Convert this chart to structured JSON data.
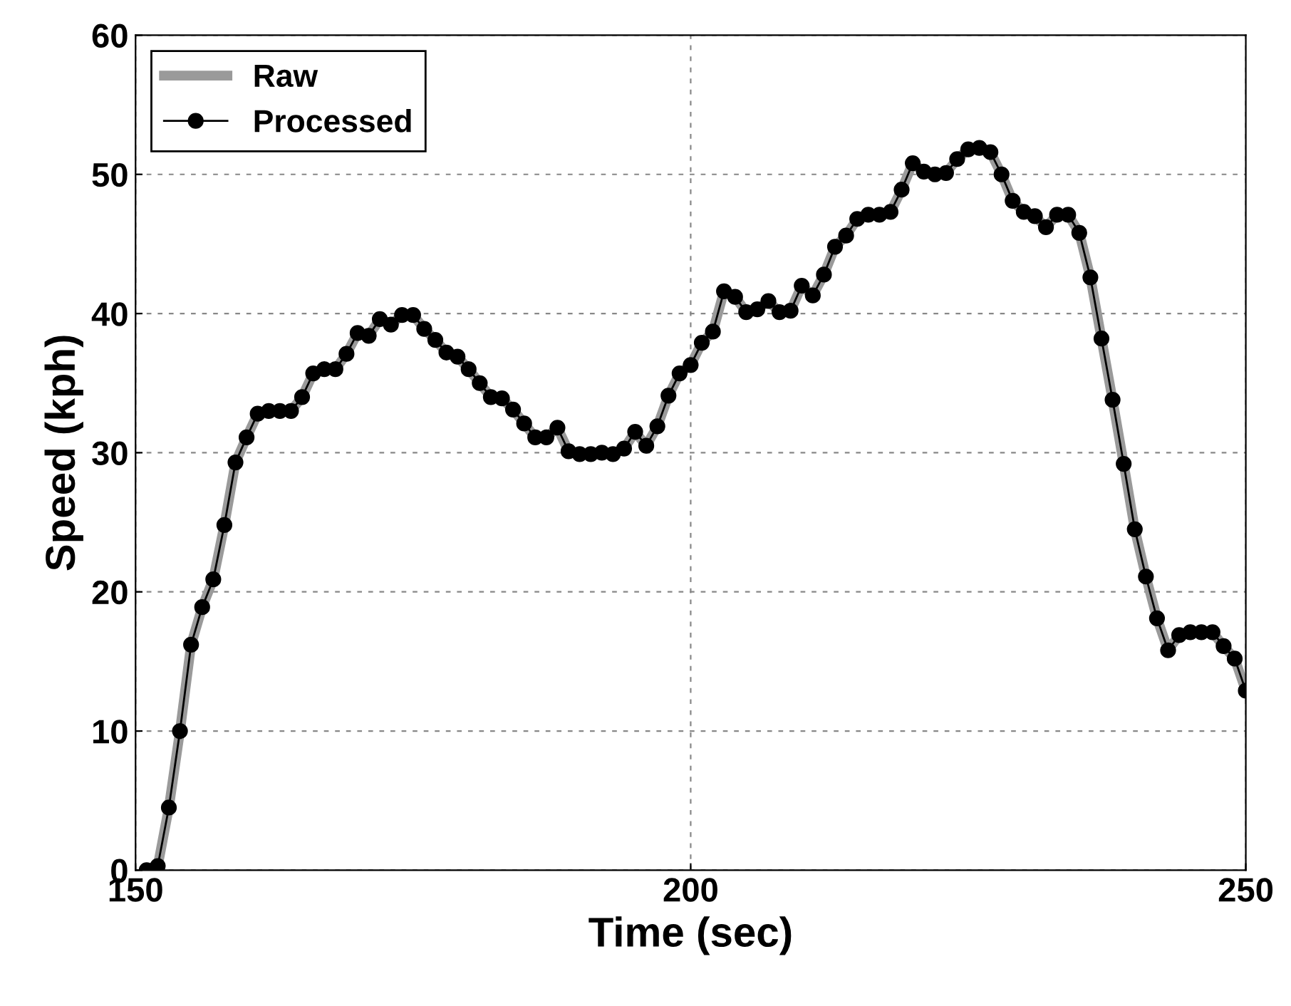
{
  "chart_data": {
    "type": "line",
    "xlabel": "Time (sec)",
    "ylabel": "Speed (kph)",
    "x": [
      151,
      152,
      153,
      154,
      155,
      156,
      157,
      158,
      159,
      160,
      161,
      162,
      163,
      164,
      165,
      166,
      167,
      168,
      169,
      170,
      171,
      172,
      173,
      174,
      175,
      176,
      177,
      178,
      179,
      180,
      181,
      182,
      183,
      184,
      185,
      186,
      187,
      188,
      189,
      190,
      191,
      192,
      193,
      194,
      195,
      196,
      197,
      198,
      199,
      200,
      201,
      202,
      203,
      204,
      205,
      206,
      207,
      208,
      209,
      210,
      211,
      212,
      213,
      214,
      215,
      216,
      217,
      218,
      219,
      220,
      221,
      222,
      223,
      224,
      225,
      226,
      227,
      228,
      229,
      230,
      231,
      232,
      233,
      234,
      235,
      236,
      237,
      238,
      239,
      240,
      241,
      242,
      243,
      244,
      245,
      246,
      247,
      248,
      249,
      250
    ],
    "series": [
      {
        "name": "Raw",
        "color": "#9a9a9a",
        "marker": "none",
        "values": [
          0,
          0.3,
          4.5,
          10,
          16.2,
          18.9,
          20.9,
          24.8,
          29.3,
          31.1,
          32.8,
          33,
          33,
          33,
          34,
          35.7,
          36,
          36,
          37.1,
          38.6,
          38.4,
          39.6,
          39.2,
          39.9,
          39.9,
          38.9,
          38.1,
          37.2,
          36.9,
          36,
          35,
          34,
          33.9,
          33.1,
          32.1,
          31.1,
          31.1,
          31.8,
          30.1,
          29.9,
          29.9,
          30,
          29.9,
          30.3,
          31.5,
          30.5,
          31.9,
          34.1,
          35.7,
          36.3,
          37.9,
          38.7,
          41.6,
          41.2,
          40.1,
          40.3,
          40.9,
          40.1,
          40.2,
          42,
          41.3,
          42.8,
          44.8,
          45.6,
          46.8,
          47.1,
          47.1,
          47.3,
          48.9,
          50.8,
          50.2,
          50,
          50.1,
          51.1,
          51.8,
          51.9,
          51.6,
          50,
          48.1,
          47.3,
          47,
          46.2,
          47.1,
          47.1,
          45.8,
          42.6,
          38.2,
          33.8,
          29.2,
          24.5,
          21.1,
          18.1,
          15.8,
          16.9,
          17.1,
          17.1,
          17.1,
          16.1,
          15.2,
          12.9
        ]
      },
      {
        "name": "Processed",
        "color": "#000000",
        "marker": "circle",
        "values": [
          0,
          0.3,
          4.5,
          10,
          16.2,
          18.9,
          20.9,
          24.8,
          29.3,
          31.1,
          32.8,
          33,
          33,
          33,
          34,
          35.7,
          36,
          36,
          37.1,
          38.6,
          38.4,
          39.6,
          39.2,
          39.9,
          39.9,
          38.9,
          38.1,
          37.2,
          36.9,
          36,
          35,
          34,
          33.9,
          33.1,
          32.1,
          31.1,
          31.1,
          31.8,
          30.1,
          29.9,
          29.9,
          30,
          29.9,
          30.3,
          31.5,
          30.5,
          31.9,
          34.1,
          35.7,
          36.3,
          37.9,
          38.7,
          41.6,
          41.2,
          40.1,
          40.3,
          40.9,
          40.1,
          40.2,
          42,
          41.3,
          42.8,
          44.8,
          45.6,
          46.8,
          47.1,
          47.1,
          47.3,
          48.9,
          50.8,
          50.2,
          50,
          50.1,
          51.1,
          51.8,
          51.9,
          51.6,
          50,
          48.1,
          47.3,
          47,
          46.2,
          47.1,
          47.1,
          45.8,
          42.6,
          38.2,
          33.8,
          29.2,
          24.5,
          21.1,
          18.1,
          15.8,
          16.9,
          17.1,
          17.1,
          17.1,
          16.1,
          15.2,
          12.9
        ]
      }
    ],
    "xlim": [
      150,
      250
    ],
    "xticks": [
      150,
      200,
      250
    ],
    "ylim": [
      0,
      60
    ],
    "yticks": [
      0,
      10,
      20,
      30,
      40,
      50,
      60
    ],
    "grid": true,
    "legend": "top left",
    "line_style": "solid"
  }
}
